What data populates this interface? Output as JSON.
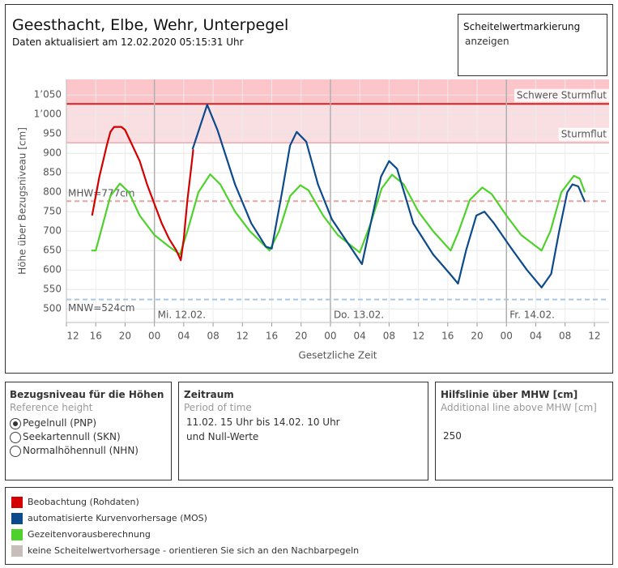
{
  "header": {
    "title": "Geesthacht, Elbe, Wehr, Unterpegel",
    "subtitle": "Daten aktualisiert am 12.02.2020 05:15:31 Uhr"
  },
  "peak_marker": {
    "title": "Scheitelwertmarkierung",
    "option": "anzeigen"
  },
  "chart_data": {
    "type": "line",
    "ylabel": "Höhe über Bezugsniveau [cm]",
    "xlabel": "Gesetzliche Zeit",
    "xlim": [
      12,
      86
    ],
    "ylim": [
      465,
      1090
    ],
    "xticks": [
      12,
      16,
      20,
      {
        "value": 24,
        "label": "00"
      },
      {
        "value": 28,
        "label": "04"
      },
      {
        "value": 32,
        "label": "08"
      },
      {
        "value": 36,
        "label": "12"
      },
      {
        "value": 40,
        "label": "16"
      },
      {
        "value": 44,
        "label": "20"
      },
      {
        "value": 48,
        "label": "00"
      },
      {
        "value": 52,
        "label": "04"
      },
      {
        "value": 56,
        "label": "08"
      },
      {
        "value": 60,
        "label": "12"
      },
      {
        "value": 64,
        "label": "16"
      },
      {
        "value": 68,
        "label": "20"
      },
      {
        "value": 72,
        "label": "00"
      },
      {
        "value": 76,
        "label": "04"
      },
      {
        "value": 80,
        "label": "08"
      },
      {
        "value": 84,
        "label": "12"
      }
    ],
    "yticks": [
      500,
      550,
      600,
      650,
      700,
      750,
      800,
      850,
      900,
      950,
      {
        "value": 1000,
        "label": "1’000"
      },
      {
        "value": 1050,
        "label": "1’050"
      }
    ],
    "grid": true,
    "days": [
      {
        "value": 24,
        "label": "Mi. 12.02."
      },
      {
        "value": 48,
        "label": "Do. 13.02."
      },
      {
        "value": 72,
        "label": "Fr. 14.02."
      }
    ],
    "bands": [
      {
        "label": "Sturmflut",
        "from": 927,
        "to": 1027,
        "color": "#f9dfe2"
      },
      {
        "label": "Schwere Sturmflut",
        "from": 1027,
        "to": 1090,
        "color": "#fbc5ca"
      }
    ],
    "reference_lines": [
      {
        "label": "MHW=777cm",
        "value": 777,
        "color": "#e8a4a0"
      },
      {
        "label": "MNW=524cm",
        "value": 524,
        "color": "#a9c8e0"
      }
    ],
    "series": [
      {
        "name": "Beobachtung (Rohdaten)",
        "color": "#d40000",
        "x": [
          15.5,
          16,
          16.5,
          17,
          17.5,
          18,
          18.5,
          19.5,
          20,
          21,
          22,
          23,
          24,
          25,
          26,
          27,
          27.6,
          28,
          28.5,
          29,
          29.3
        ],
        "values": [
          740,
          790,
          840,
          880,
          920,
          955,
          968,
          968,
          960,
          920,
          880,
          820,
          770,
          720,
          680,
          650,
          625,
          680,
          780,
          860,
          910
        ]
      },
      {
        "name": "automatisierte Kurvenvorhersage (MOS)",
        "color": "#0d4a8c",
        "x": [
          29.2,
          31.2,
          32.6,
          35,
          37.2,
          39.2,
          40,
          41.4,
          42.5,
          43.4,
          44.7,
          46.3,
          48.2,
          50.7,
          52.3,
          53.5,
          54.9,
          56,
          57.1,
          59.3,
          62,
          64.3,
          65.4,
          66.5,
          67.9,
          69,
          70.3,
          72.5,
          74.8,
          76.8,
          78.1,
          79.2,
          80.3,
          81,
          81.8,
          82.7
        ],
        "values": [
          910,
          1025,
          960,
          820,
          720,
          660,
          655,
          800,
          920,
          955,
          930,
          820,
          730,
          660,
          615,
          720,
          840,
          880,
          860,
          720,
          640,
          590,
          565,
          650,
          740,
          750,
          720,
          660,
          600,
          555,
          590,
          700,
          800,
          820,
          815,
          775
        ]
      },
      {
        "name": "Gezeitenvorausberechnung",
        "color": "#4ed12a",
        "x": [
          15.4,
          16,
          17,
          18,
          19.3,
          20.5,
          22,
          24,
          26,
          27.5,
          28.5,
          30,
          31.6,
          33,
          35,
          37,
          39.7,
          41,
          42.5,
          43.9,
          45,
          47,
          49,
          52,
          53.5,
          55,
          56.4,
          58,
          60,
          62,
          64.4,
          65.5,
          67,
          68.7,
          70,
          72,
          74,
          76.8,
          78,
          79.5,
          81.2,
          82,
          82.7
        ],
        "values": [
          650,
          650,
          720,
          790,
          822,
          800,
          740,
          690,
          660,
          640,
          700,
          800,
          846,
          820,
          750,
          700,
          650,
          700,
          790,
          818,
          805,
          740,
          690,
          645,
          720,
          810,
          845,
          820,
          750,
          700,
          650,
          700,
          780,
          812,
          795,
          740,
          690,
          650,
          700,
          800,
          842,
          835,
          800
        ]
      }
    ],
    "legend_extra": {
      "name": "keine Scheitelwertvorhersage - orientieren Sie sich an den Nachbarpegeln",
      "color": "#c9bdb9"
    }
  },
  "reference": {
    "title": "Bezugsniveau für die Höhen",
    "subtitle": "Reference height",
    "options": [
      "Pegelnull (PNP)",
      "Seekartennull (SKN)",
      "Normalhöhennull (NHN)"
    ],
    "selected": 0
  },
  "period": {
    "title": "Zeitraum",
    "subtitle": "Period of time",
    "lines": [
      "11.02. 15 Uhr bis 14.02. 10 Uhr",
      "und Null-Werte"
    ]
  },
  "helpline": {
    "title": "Hilfslinie über MHW [cm]",
    "subtitle": "Additional line above MHW [cm]",
    "value": "250"
  }
}
